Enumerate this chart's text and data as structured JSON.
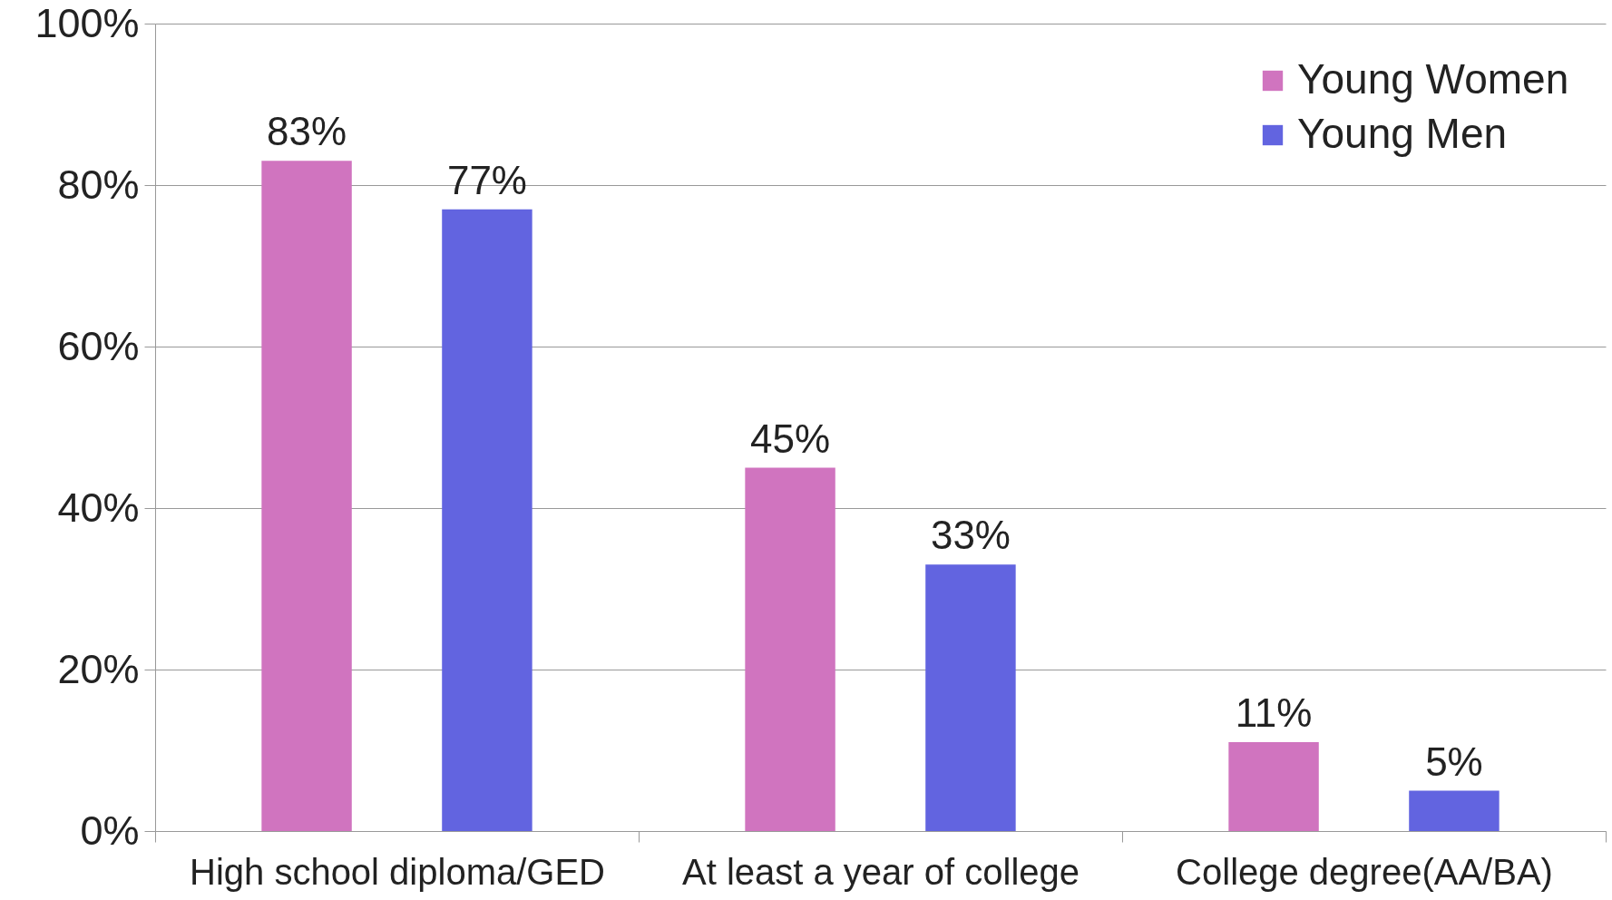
{
  "chart_data": {
    "type": "bar",
    "categories": [
      "High school diploma/GED",
      "At least a year of college",
      "College degree(AA/BA)"
    ],
    "series": [
      {
        "name": "Young Women",
        "color": "#d074bf",
        "values": [
          83,
          45,
          11
        ],
        "value_labels": [
          "83%",
          "45%",
          "11%"
        ]
      },
      {
        "name": "Young Men",
        "color": "#6264e0",
        "values": [
          77,
          33,
          5
        ],
        "value_labels": [
          "77%",
          "33%",
          "5%"
        ]
      }
    ],
    "ylim": [
      0,
      100
    ],
    "yticks": [
      {
        "value": 0,
        "label": "0%"
      },
      {
        "value": 20,
        "label": "20%"
      },
      {
        "value": 40,
        "label": "40%"
      },
      {
        "value": 60,
        "label": "60%"
      },
      {
        "value": 80,
        "label": "80%"
      },
      {
        "value": 100,
        "label": "100%"
      }
    ],
    "grid": "y",
    "legend": "top right"
  }
}
